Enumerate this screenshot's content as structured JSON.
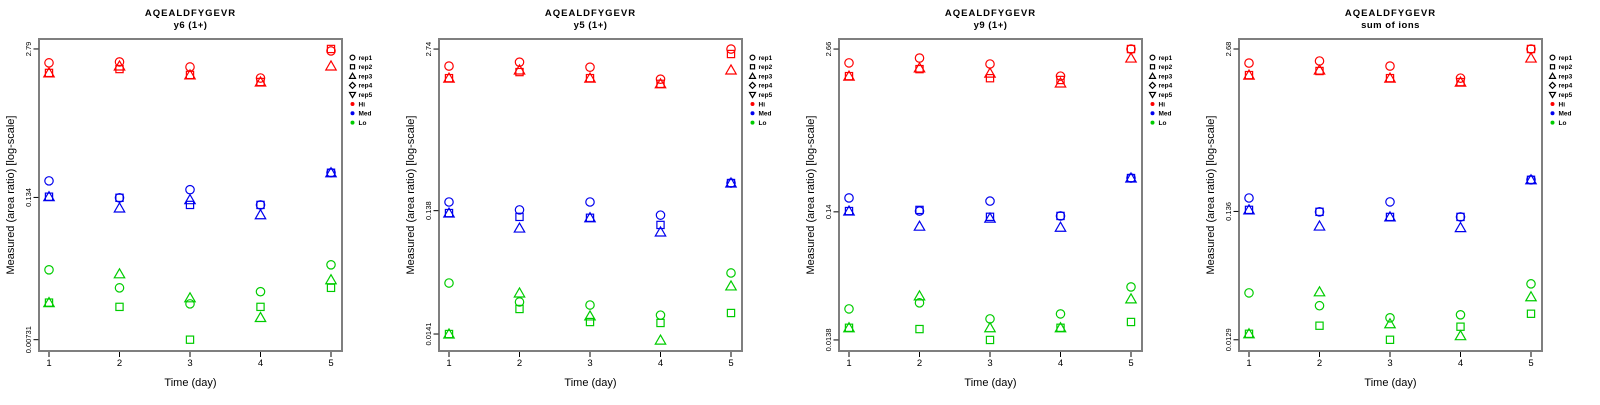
{
  "figure": {
    "background": "#FFFFFF",
    "x_axis_label": "Time (day)",
    "y_axis_label": "Measured (area ratio) [log-scale]",
    "x_tick_labels": [
      "1",
      "2",
      "3",
      "4",
      "5"
    ],
    "legend": {
      "rep_items": [
        {
          "label": "rep1",
          "marker": "circle"
        },
        {
          "label": "rep2",
          "marker": "square"
        },
        {
          "label": "rep3",
          "marker": "triangle-up"
        },
        {
          "label": "rep4",
          "marker": "diamond"
        },
        {
          "label": "rep5",
          "marker": "triangle-down"
        }
      ],
      "group_items": [
        {
          "label": "Hi",
          "color": "#FF0000"
        },
        {
          "label": "Med",
          "color": "#0000EE"
        },
        {
          "label": "Lo",
          "color": "#00CC00"
        }
      ]
    },
    "colors": {
      "Hi": "#FF0000",
      "Med": "#0000EE",
      "Lo": "#00CC00",
      "box": "#7F7F7F",
      "text": "#000000"
    }
  },
  "chart_data": [
    {
      "type": "scatter",
      "title": "AQEALDFYGEVR",
      "subtitle": "y6 (1+)",
      "xlabel": "Time (day)",
      "ylabel": "Measured (area ratio) [log-scale]",
      "x": [
        1,
        2,
        3,
        4,
        5
      ],
      "yscale": "log",
      "ylim": [
        0.0058,
        3.42
      ],
      "grid": false,
      "legend_position": "right",
      "yticks": [
        {
          "label": "2.79",
          "value": 2.79
        },
        {
          "label": "0.134",
          "value": 0.134
        },
        {
          "label": "0.00731",
          "value": 0.00731
        }
      ],
      "series": [
        {
          "name": "Hi rep1",
          "group": "Hi",
          "marker": "circle",
          "values": [
            2.1,
            2.14,
            1.93,
            1.54,
            2.68
          ]
        },
        {
          "name": "Hi rep2",
          "group": "Hi",
          "marker": "square",
          "values": [
            1.71,
            1.85,
            1.64,
            1.42,
            2.79
          ]
        },
        {
          "name": "Hi rep3",
          "group": "Hi",
          "marker": "triangle-up",
          "values": [
            1.71,
            1.97,
            1.64,
            1.42,
            1.97
          ]
        },
        {
          "name": "Med rep1",
          "group": "Med",
          "marker": "circle",
          "values": [
            0.188,
            0.133,
            0.157,
            0.115,
            0.222
          ]
        },
        {
          "name": "Med rep2",
          "group": "Med",
          "marker": "square",
          "values": [
            0.136,
            0.133,
            0.115,
            0.115,
            0.222
          ]
        },
        {
          "name": "Med rep3",
          "group": "Med",
          "marker": "triangle-up",
          "values": [
            0.136,
            0.108,
            0.128,
            0.094,
            0.222
          ]
        },
        {
          "name": "Lo rep1",
          "group": "Lo",
          "marker": "circle",
          "values": [
            0.0305,
            0.0211,
            0.0152,
            0.0195,
            0.0338
          ]
        },
        {
          "name": "Lo rep2",
          "group": "Lo",
          "marker": "square",
          "values": [
            0.0156,
            0.0143,
            0.00731,
            0.0143,
            0.0211
          ]
        },
        {
          "name": "Lo rep3",
          "group": "Lo",
          "marker": "triangle-up",
          "values": [
            0.0156,
            0.0281,
            0.0172,
            0.0115,
            0.0249
          ]
        }
      ]
    },
    {
      "type": "scatter",
      "title": "AQEALDFYGEVR",
      "subtitle": "y5 (1+)",
      "xlabel": "Time (day)",
      "ylabel": "Measured (area ratio) [log-scale]",
      "x": [
        1,
        2,
        3,
        4,
        5
      ],
      "yscale": "log",
      "ylim": [
        0.0103,
        3.3
      ],
      "grid": false,
      "legend_position": "right",
      "yticks": [
        {
          "label": "2.74",
          "value": 2.74
        },
        {
          "label": "0.138",
          "value": 0.138
        },
        {
          "label": "0.0141",
          "value": 0.0141
        }
      ],
      "series": [
        {
          "name": "Hi rep1",
          "group": "Hi",
          "marker": "circle",
          "values": [
            2.0,
            2.15,
            1.96,
            1.57,
            2.74
          ]
        },
        {
          "name": "Hi rep2",
          "group": "Hi",
          "marker": "square",
          "values": [
            1.6,
            1.79,
            1.6,
            1.44,
            2.5
          ]
        },
        {
          "name": "Hi rep3",
          "group": "Hi",
          "marker": "triangle-up",
          "values": [
            1.6,
            1.86,
            1.6,
            1.44,
            1.86
          ]
        },
        {
          "name": "Med rep1",
          "group": "Med",
          "marker": "circle",
          "values": [
            0.162,
            0.14,
            0.162,
            0.127,
            0.23
          ]
        },
        {
          "name": "Med rep2",
          "group": "Med",
          "marker": "square",
          "values": [
            0.132,
            0.123,
            0.121,
            0.106,
            0.23
          ]
        },
        {
          "name": "Med rep3",
          "group": "Med",
          "marker": "triangle-up",
          "values": [
            0.132,
            0.1,
            0.121,
            0.093,
            0.23
          ]
        },
        {
          "name": "Lo rep1",
          "group": "Lo",
          "marker": "circle",
          "values": [
            0.0362,
            0.0255,
            0.0241,
            0.02,
            0.0436
          ]
        },
        {
          "name": "Lo rep2",
          "group": "Lo",
          "marker": "square",
          "values": [
            0.0141,
            0.0224,
            0.0176,
            0.0173,
            0.0208
          ]
        },
        {
          "name": "Lo rep3",
          "group": "Lo",
          "marker": "triangle-up",
          "values": [
            0.0141,
            0.0301,
            0.0197,
            0.0126,
            0.0343
          ]
        }
      ]
    },
    {
      "type": "scatter",
      "title": "AQEALDFYGEVR",
      "subtitle": "y9 (1+)",
      "xlabel": "Time (day)",
      "ylabel": "Measured (area ratio) [log-scale]",
      "x": [
        1,
        2,
        3,
        4,
        5
      ],
      "yscale": "log",
      "ylim": [
        0.0113,
        3.19
      ],
      "grid": false,
      "legend_position": "right",
      "yticks": [
        {
          "label": "2.66",
          "value": 2.66
        },
        {
          "label": "0.14",
          "value": 0.14
        },
        {
          "label": "0.0138",
          "value": 0.0138
        }
      ],
      "series": [
        {
          "name": "Hi rep1",
          "group": "Hi",
          "marker": "circle",
          "values": [
            2.07,
            2.26,
            2.03,
            1.63,
            2.66
          ]
        },
        {
          "name": "Hi rep2",
          "group": "Hi",
          "marker": "square",
          "values": [
            1.63,
            1.85,
            1.57,
            1.52,
            2.66
          ]
        },
        {
          "name": "Hi rep3",
          "group": "Hi",
          "marker": "triangle-up",
          "values": [
            1.63,
            1.89,
            1.72,
            1.44,
            2.26
          ]
        },
        {
          "name": "Med rep1",
          "group": "Med",
          "marker": "circle",
          "values": [
            0.18,
            0.142,
            0.17,
            0.13,
            0.258
          ]
        },
        {
          "name": "Med rep2",
          "group": "Med",
          "marker": "square",
          "values": [
            0.142,
            0.145,
            0.128,
            0.13,
            0.258
          ]
        },
        {
          "name": "Med rep3",
          "group": "Med",
          "marker": "triangle-up",
          "values": [
            0.142,
            0.108,
            0.125,
            0.106,
            0.258
          ]
        },
        {
          "name": "Lo rep1",
          "group": "Lo",
          "marker": "circle",
          "values": [
            0.0242,
            0.027,
            0.0202,
            0.0221,
            0.036
          ]
        },
        {
          "name": "Lo rep2",
          "group": "Lo",
          "marker": "square",
          "values": [
            0.0172,
            0.0168,
            0.0138,
            0.0172,
            0.0191
          ]
        },
        {
          "name": "Lo rep3",
          "group": "Lo",
          "marker": "triangle-up",
          "values": [
            0.0172,
            0.0306,
            0.0172,
            0.0172,
            0.029
          ]
        }
      ]
    },
    {
      "type": "scatter",
      "title": "AQEALDFYGEVR",
      "subtitle": "sum of ions",
      "xlabel": "Time (day)",
      "ylabel": "Measured (area ratio) [log-scale]",
      "x": [
        1,
        2,
        3,
        4,
        5
      ],
      "yscale": "log",
      "ylim": [
        0.0105,
        3.22
      ],
      "grid": false,
      "legend_position": "right",
      "yticks": [
        {
          "label": "2.68",
          "value": 2.68
        },
        {
          "label": "0.136",
          "value": 0.136
        },
        {
          "label": "0.0129",
          "value": 0.0129
        }
      ],
      "series": [
        {
          "name": "Hi rep1",
          "group": "Hi",
          "marker": "circle",
          "values": [
            2.07,
            2.15,
            1.96,
            1.57,
            2.68
          ]
        },
        {
          "name": "Hi rep2",
          "group": "Hi",
          "marker": "square",
          "values": [
            1.66,
            1.79,
            1.57,
            1.46,
            2.68
          ]
        },
        {
          "name": "Hi rep3",
          "group": "Hi",
          "marker": "triangle-up",
          "values": [
            1.66,
            1.82,
            1.57,
            1.46,
            2.27
          ]
        },
        {
          "name": "Med rep1",
          "group": "Med",
          "marker": "circle",
          "values": [
            0.174,
            0.135,
            0.162,
            0.123,
            0.243
          ]
        },
        {
          "name": "Med rep2",
          "group": "Med",
          "marker": "square",
          "values": [
            0.14,
            0.135,
            0.123,
            0.123,
            0.243
          ]
        },
        {
          "name": "Med rep3",
          "group": "Med",
          "marker": "triangle-up",
          "values": [
            0.14,
            0.104,
            0.123,
            0.101,
            0.243
          ]
        },
        {
          "name": "Lo rep1",
          "group": "Lo",
          "marker": "circle",
          "values": [
            0.0305,
            0.0241,
            0.0193,
            0.0204,
            0.036
          ]
        },
        {
          "name": "Lo rep2",
          "group": "Lo",
          "marker": "square",
          "values": [
            0.0144,
            0.0167,
            0.0129,
            0.0164,
            0.0208
          ]
        },
        {
          "name": "Lo rep3",
          "group": "Lo",
          "marker": "triangle-up",
          "values": [
            0.0144,
            0.0311,
            0.0173,
            0.0139,
            0.0284
          ]
        }
      ]
    }
  ]
}
